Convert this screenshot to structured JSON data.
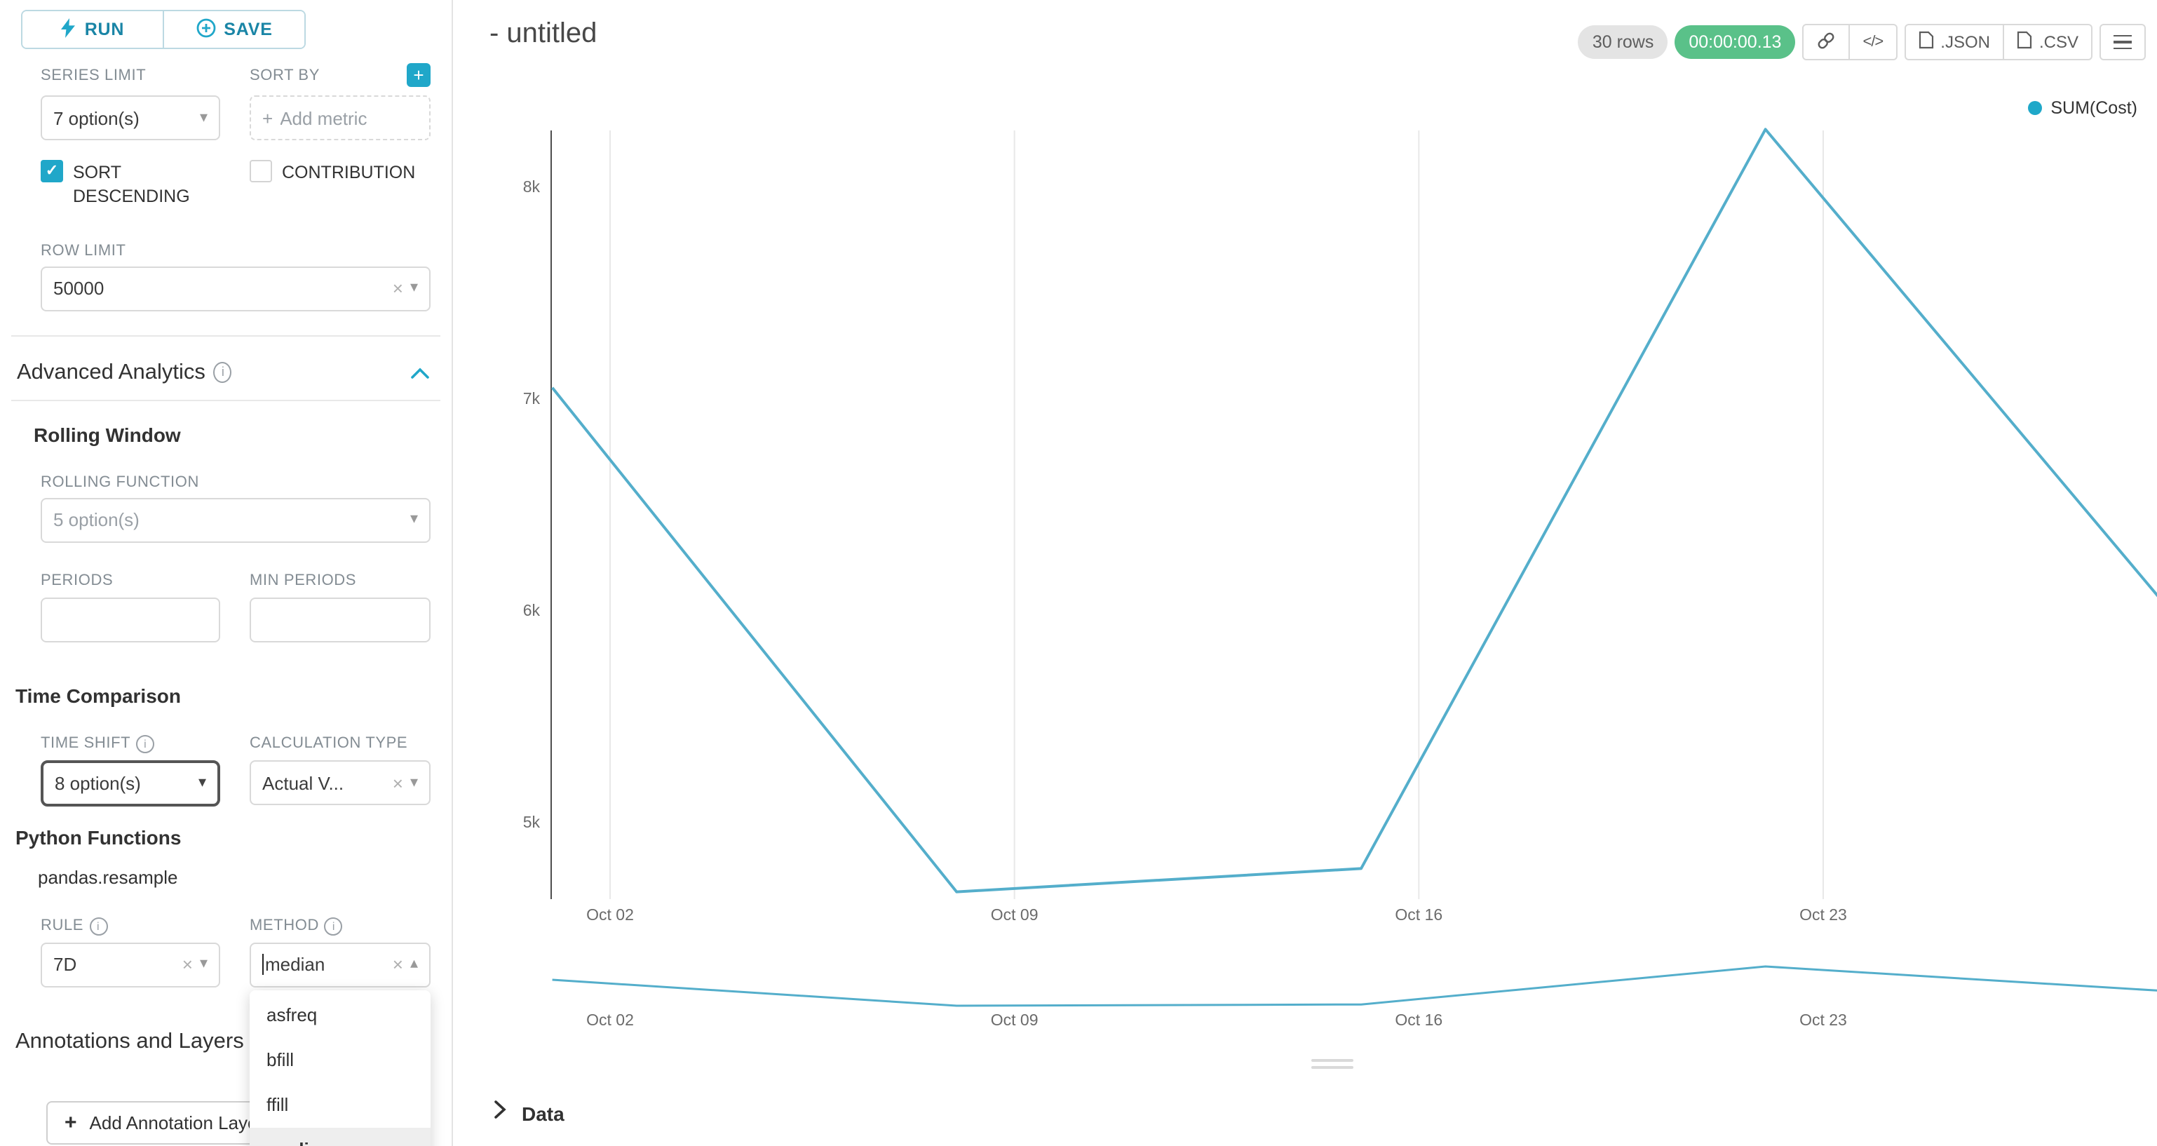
{
  "colors": {
    "primary": "#20a7c9",
    "success_badge": "#5ac189",
    "chart_line": "#54aecb",
    "checkbox_checked": "#20a7c9"
  },
  "sidebar": {
    "run_button": "RUN",
    "save_button": "SAVE",
    "series_limit": {
      "label": "SERIES LIMIT",
      "value": "7 option(s)"
    },
    "sort_by": {
      "label": "SORT BY",
      "placeholder": "Add metric"
    },
    "sort_descending_label": "SORT DESCENDING",
    "contribution_label": "CONTRIBUTION",
    "row_limit": {
      "label": "ROW LIMIT",
      "value": "50000"
    },
    "advanced_analytics_title": "Advanced Analytics",
    "rolling_window": {
      "title": "Rolling Window",
      "rolling_function": {
        "label": "ROLLING FUNCTION",
        "value": "5 option(s)"
      },
      "periods_label": "PERIODS",
      "min_periods_label": "MIN PERIODS"
    },
    "time_comparison": {
      "title": "Time Comparison",
      "time_shift": {
        "label": "TIME SHIFT",
        "value": "8 option(s)"
      },
      "calculation_type": {
        "label": "CALCULATION TYPE",
        "value": "Actual V..."
      }
    },
    "python_functions": {
      "title": "Python Functions",
      "subtitle": "pandas.resample",
      "rule": {
        "label": "RULE",
        "value": "7D"
      },
      "method": {
        "label": "METHOD",
        "value": "median",
        "options": [
          "asfreq",
          "bfill",
          "ffill",
          "median"
        ],
        "selected_option": "median"
      }
    },
    "annotations": {
      "title": "Annotations and Layers",
      "add_button": "Add Annotation Layer"
    }
  },
  "header": {
    "title": "- untitled",
    "rows_badge": "30 rows",
    "timer_badge": "00:00:00.13",
    "export_json": ".JSON",
    "export_csv": ".CSV",
    "code_icon_text": "</>"
  },
  "chart_data": {
    "type": "line",
    "title": "",
    "legend": [
      {
        "label": "SUM(Cost)",
        "color": "#1fa8c9"
      }
    ],
    "series": [
      {
        "name": "SUM(Cost)",
        "x_days": [
          -1,
          6,
          13,
          20,
          27
        ],
        "values": [
          7050,
          4670,
          4780,
          8270,
          6000
        ]
      }
    ],
    "x_ticks": [
      {
        "day": 0,
        "label": "Oct 02"
      },
      {
        "day": 7,
        "label": "Oct 09"
      },
      {
        "day": 14,
        "label": "Oct 16"
      },
      {
        "day": 21,
        "label": "Oct 23"
      }
    ],
    "y_ticks": [
      {
        "value": 5000,
        "label": "5k"
      },
      {
        "value": 6000,
        "label": "6k"
      },
      {
        "value": 7000,
        "label": "7k"
      },
      {
        "value": 8000,
        "label": "8k"
      }
    ],
    "ylim": [
      4600,
      8400
    ],
    "line_color": "#54aecb",
    "grid": "vertical-only",
    "legend_position": "top-right",
    "has_mini_preview": true
  },
  "data_panel": {
    "title": "Data"
  }
}
